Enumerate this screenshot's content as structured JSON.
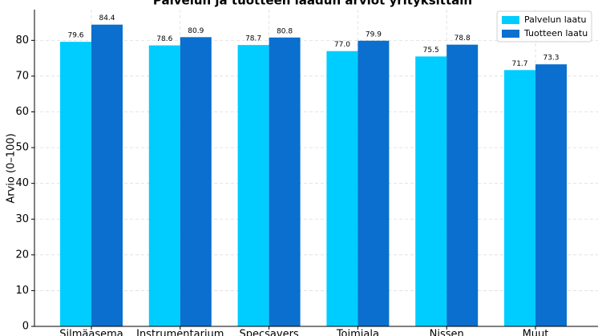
{
  "chart_data": {
    "type": "bar",
    "title": "Palvelun ja tuotteen laadun arviot yrityksittäin",
    "y_label": "Arvio (0–100)",
    "categories": [
      "Silmäasema",
      "Instrumentarium",
      "Specsavers",
      "Toimiala",
      "Nissen",
      "Muut"
    ],
    "series": [
      {
        "name": "Palvelun laatu",
        "color": "#00cdff",
        "values": [
          79.6,
          78.6,
          78.7,
          77.0,
          75.5,
          71.7
        ],
        "value_labels": [
          "79.6",
          "78.6",
          "78.7",
          "77.0",
          "75.5",
          "71.7"
        ]
      },
      {
        "name": "Tuotteen laatu",
        "color": "#0a6fce",
        "values": [
          84.4,
          80.9,
          80.8,
          79.9,
          78.8,
          73.3
        ],
        "value_labels": [
          "84.4",
          "80.9",
          "80.8",
          "79.9",
          "78.8",
          "73.3"
        ]
      }
    ],
    "ylim": [
      0,
      88.6
    ],
    "yticks": [
      0,
      10,
      20,
      30,
      40,
      50,
      60,
      70,
      80
    ],
    "grid": true,
    "legend": "upper right"
  }
}
